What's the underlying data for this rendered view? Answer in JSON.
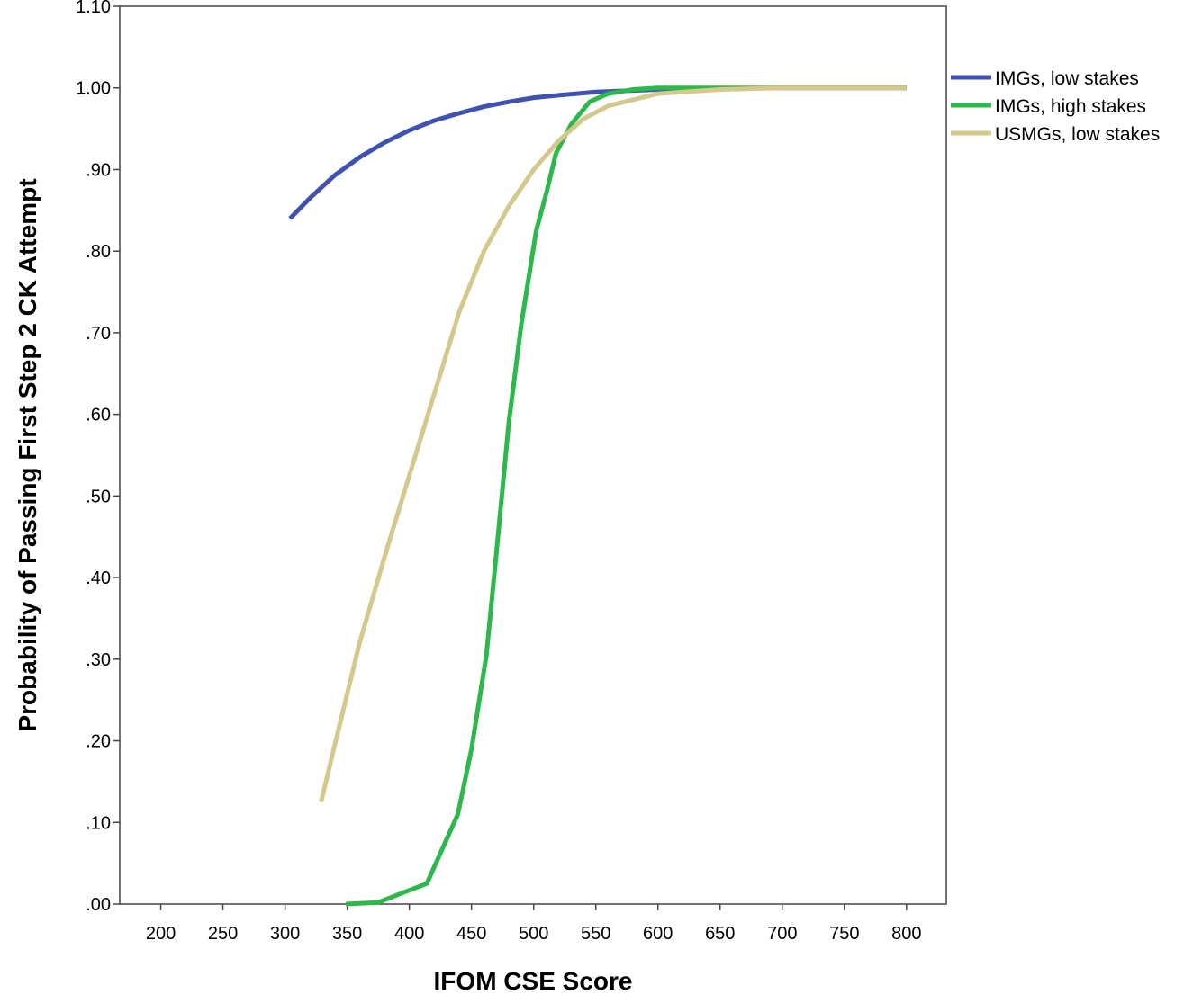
{
  "chart_data": {
    "type": "line",
    "title": "",
    "xlabel": "IFOM CSE Score",
    "ylabel": "Probability of Passing First Step 2 CK Attempt",
    "xlim": [
      167,
      832
    ],
    "ylim": [
      0,
      1.1
    ],
    "x_ticks": [
      200,
      250,
      300,
      350,
      400,
      450,
      500,
      550,
      600,
      650,
      700,
      750,
      800
    ],
    "x_tick_labels": [
      "200",
      "250",
      "300",
      "350",
      "400",
      "450",
      "500",
      "550",
      "600",
      "650",
      "700",
      "750",
      "800"
    ],
    "y_ticks": [
      0,
      0.1,
      0.2,
      0.3,
      0.4,
      0.5,
      0.6,
      0.7,
      0.8,
      0.9,
      1.0,
      1.1
    ],
    "y_tick_labels": [
      ".00",
      ".10",
      ".20",
      ".30",
      ".40",
      ".50",
      ".60",
      ".70",
      ".80",
      ".90",
      "1.00",
      "1.10"
    ],
    "grid": false,
    "legend_position": "top-right-outside",
    "series": [
      {
        "name": "IMGs, low stakes",
        "color": "#3F51B5",
        "points": [
          [
            304,
            0.84
          ],
          [
            320,
            0.865
          ],
          [
            340,
            0.893
          ],
          [
            360,
            0.915
          ],
          [
            380,
            0.933
          ],
          [
            400,
            0.948
          ],
          [
            420,
            0.96
          ],
          [
            440,
            0.969
          ],
          [
            460,
            0.977
          ],
          [
            480,
            0.983
          ],
          [
            500,
            0.988
          ],
          [
            520,
            0.991
          ],
          [
            550,
            0.995
          ],
          [
            600,
            0.998
          ],
          [
            650,
            0.999
          ],
          [
            700,
            1.0
          ],
          [
            800,
            1.0
          ]
        ]
      },
      {
        "name": "IMGs, high stakes",
        "color": "#2DB84B",
        "points": [
          [
            349,
            0.0
          ],
          [
            375,
            0.002
          ],
          [
            395,
            0.014
          ],
          [
            414,
            0.025
          ],
          [
            439,
            0.11
          ],
          [
            450,
            0.19
          ],
          [
            462,
            0.305
          ],
          [
            470,
            0.43
          ],
          [
            480,
            0.59
          ],
          [
            490,
            0.71
          ],
          [
            502,
            0.825
          ],
          [
            510,
            0.87
          ],
          [
            518,
            0.92
          ],
          [
            530,
            0.955
          ],
          [
            545,
            0.983
          ],
          [
            560,
            0.993
          ],
          [
            580,
            0.998
          ],
          [
            600,
            1.0
          ],
          [
            800,
            1.0
          ]
        ]
      },
      {
        "name": "USMGs, low stakes",
        "color": "#D4C88A",
        "points": [
          [
            329,
            0.125
          ],
          [
            340,
            0.195
          ],
          [
            360,
            0.32
          ],
          [
            380,
            0.425
          ],
          [
            400,
            0.525
          ],
          [
            420,
            0.625
          ],
          [
            440,
            0.725
          ],
          [
            460,
            0.8
          ],
          [
            480,
            0.855
          ],
          [
            500,
            0.9
          ],
          [
            520,
            0.935
          ],
          [
            540,
            0.962
          ],
          [
            560,
            0.978
          ],
          [
            600,
            0.993
          ],
          [
            650,
            0.998
          ],
          [
            700,
            1.0
          ],
          [
            800,
            1.0
          ]
        ]
      }
    ]
  }
}
